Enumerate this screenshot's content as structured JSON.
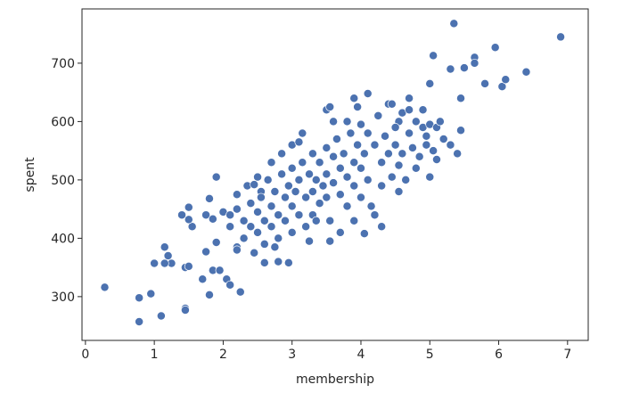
{
  "chart_data": {
    "type": "scatter",
    "xlabel": "membership",
    "ylabel": "spent",
    "color": "#4c72b0",
    "xlim": [
      -0.05,
      7.3
    ],
    "ylim": [
      225,
      793
    ],
    "xticks": [
      0,
      1,
      2,
      3,
      4,
      5,
      6,
      7
    ],
    "yticks": [
      300,
      400,
      500,
      600,
      700
    ],
    "x": [
      0.28,
      0.78,
      0.78,
      0.95,
      1.1,
      1.0,
      1.15,
      1.2,
      1.25,
      1.15,
      1.4,
      1.45,
      1.5,
      1.45,
      1.45,
      1.5,
      1.55,
      1.5,
      1.7,
      1.75,
      1.8,
      1.85,
      1.8,
      1.75,
      1.9,
      1.85,
      1.95,
      2.05,
      2.1,
      2.25,
      1.9,
      2.0,
      2.1,
      2.2,
      2.2,
      2.35,
      2.45,
      2.55,
      2.6,
      2.7,
      2.75,
      2.95,
      3.0,
      3.15,
      3.5,
      3.55,
      3.8,
      3.9,
      4.1,
      4.4,
      4.55,
      4.7,
      4.9,
      5.0,
      5.05,
      5.3,
      5.35,
      5.45,
      5.5,
      5.65,
      5.65,
      5.8,
      5.95,
      6.05,
      6.1,
      6.4,
      6.9,
      5.0,
      5.1,
      5.3,
      5.4,
      5.45,
      4.3,
      4.05,
      3.55,
      4.95,
      4.8,
      2.1,
      2.2,
      2.3,
      2.3,
      2.4,
      2.4,
      2.5,
      2.5,
      2.55,
      2.6,
      2.6,
      2.65,
      2.7,
      2.7,
      2.75,
      2.8,
      2.8,
      2.85,
      2.9,
      2.9,
      2.95,
      3.0,
      3.0,
      3.0,
      3.05,
      3.1,
      3.1,
      3.15,
      3.2,
      3.2,
      3.25,
      3.3,
      3.3,
      3.3,
      3.35,
      3.4,
      3.4,
      3.45,
      3.5,
      3.5,
      3.5,
      3.55,
      3.6,
      3.6,
      3.65,
      3.7,
      3.7,
      3.75,
      3.8,
      3.8,
      3.85,
      3.9,
      3.9,
      3.95,
      4.0,
      4.0,
      4.0,
      4.05,
      4.1,
      4.1,
      4.15,
      4.2,
      4.25,
      4.3,
      4.3,
      4.35,
      4.4,
      4.45,
      4.5,
      4.5,
      4.55,
      4.6,
      4.6,
      4.65,
      4.7,
      4.75,
      4.8,
      4.85,
      4.9,
      4.95,
      5.0,
      5.05,
      5.1,
      5.15,
      5.2,
      2.2,
      2.45,
      2.8,
      3.25,
      3.7,
      4.2,
      4.55,
      3.1,
      3.6,
      2.85,
      2.5,
      3.95,
      4.45,
      4.7,
      3.35,
      3.9
    ],
    "values": [
      316,
      298,
      257,
      305,
      267,
      357,
      385,
      370,
      357,
      357,
      440,
      350,
      352,
      280,
      277,
      453,
      420,
      432,
      330,
      377,
      303,
      345,
      468,
      440,
      505,
      433,
      345,
      330,
      320,
      308,
      393,
      445,
      440,
      385,
      475,
      490,
      492,
      480,
      358,
      530,
      385,
      358,
      560,
      580,
      620,
      625,
      600,
      640,
      648,
      630,
      600,
      640,
      590,
      665,
      713,
      690,
      768,
      640,
      692,
      710,
      700,
      665,
      727,
      660,
      672,
      685,
      745,
      505,
      535,
      560,
      545,
      585,
      420,
      408,
      395,
      560,
      520,
      420,
      450,
      430,
      400,
      460,
      420,
      445,
      410,
      470,
      430,
      390,
      500,
      455,
      420,
      480,
      440,
      400,
      510,
      470,
      430,
      490,
      520,
      455,
      410,
      480,
      500,
      440,
      530,
      470,
      420,
      510,
      545,
      480,
      440,
      500,
      530,
      460,
      490,
      555,
      510,
      470,
      430,
      540,
      495,
      570,
      520,
      475,
      545,
      505,
      455,
      580,
      530,
      490,
      560,
      595,
      520,
      470,
      545,
      580,
      500,
      455,
      560,
      610,
      530,
      490,
      575,
      545,
      505,
      590,
      560,
      525,
      615,
      545,
      500,
      580,
      555,
      600,
      540,
      620,
      575,
      595,
      550,
      590,
      600,
      570,
      380,
      375,
      360,
      395,
      410,
      440,
      480,
      565,
      600,
      545,
      505,
      625,
      630,
      620,
      430,
      430
    ]
  }
}
